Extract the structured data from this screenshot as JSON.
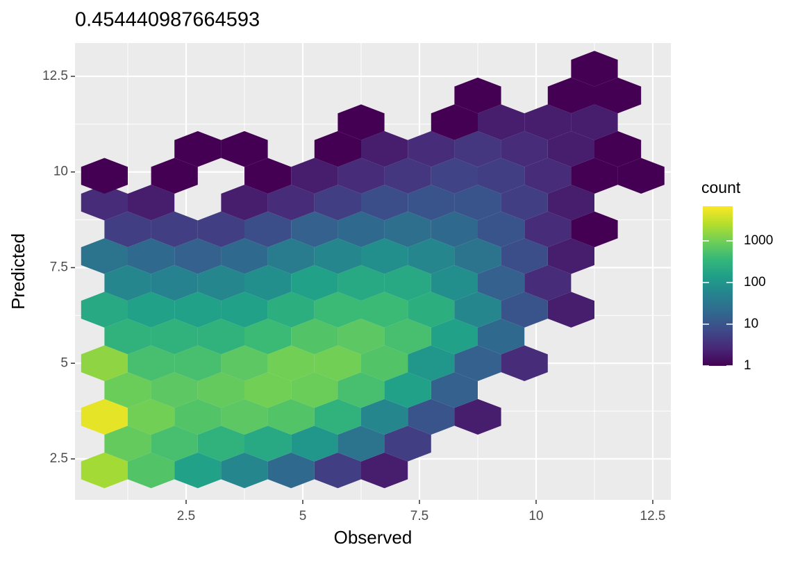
{
  "chart_data": {
    "type": "hexbin",
    "title": "0.454440987664593",
    "x_label": "Observed",
    "y_label": "Predicted",
    "x": [
      0.75,
      1.75,
      2.75,
      3.75,
      4.75,
      5.75,
      6.75,
      1.25,
      2.25,
      3.25,
      4.25,
      5.25,
      6.25,
      7.25,
      0.75,
      1.75,
      2.75,
      3.75,
      4.75,
      5.75,
      6.75,
      7.75,
      8.75,
      1.25,
      2.25,
      3.25,
      4.25,
      5.25,
      6.25,
      7.25,
      8.25,
      0.75,
      1.75,
      2.75,
      3.75,
      4.75,
      5.75,
      6.75,
      7.75,
      8.75,
      9.75,
      1.25,
      2.25,
      3.25,
      4.25,
      5.25,
      6.25,
      7.25,
      8.25,
      9.25,
      0.75,
      1.75,
      2.75,
      3.75,
      4.75,
      5.75,
      6.75,
      7.75,
      8.75,
      9.75,
      10.75,
      1.25,
      2.25,
      3.25,
      4.25,
      5.25,
      6.25,
      7.25,
      8.25,
      9.25,
      10.25,
      0.75,
      1.75,
      2.75,
      3.75,
      4.75,
      5.75,
      6.75,
      7.75,
      8.75,
      9.75,
      10.75,
      1.25,
      2.25,
      3.25,
      4.25,
      5.25,
      6.25,
      7.25,
      8.25,
      9.25,
      10.25,
      11.25,
      0.75,
      1.75,
      3.75,
      4.75,
      5.75,
      6.75,
      7.75,
      8.75,
      9.75,
      10.75,
      0.75,
      2.25,
      4.25,
      5.25,
      6.25,
      7.25,
      8.25,
      9.25,
      10.25,
      11.25,
      12.25,
      2.75,
      3.75,
      5.75,
      6.75,
      7.75,
      8.75,
      9.75,
      10.75,
      11.75,
      6.25,
      8.25,
      9.25,
      10.25,
      11.25,
      8.75,
      10.75,
      11.75,
      11.25
    ],
    "y": [
      2.2,
      2.2,
      2.2,
      2.2,
      2.2,
      2.2,
      2.2,
      2.9,
      2.9,
      2.9,
      2.9,
      2.9,
      2.9,
      2.9,
      3.6,
      3.6,
      3.6,
      3.6,
      3.6,
      3.6,
      3.6,
      3.6,
      3.6,
      4.3,
      4.3,
      4.3,
      4.3,
      4.3,
      4.3,
      4.3,
      4.3,
      5.0,
      5.0,
      5.0,
      5.0,
      5.0,
      5.0,
      5.0,
      5.0,
      5.0,
      5.0,
      5.7,
      5.7,
      5.7,
      5.7,
      5.7,
      5.7,
      5.7,
      5.7,
      5.7,
      6.4,
      6.4,
      6.4,
      6.4,
      6.4,
      6.4,
      6.4,
      6.4,
      6.4,
      6.4,
      6.4,
      7.1,
      7.1,
      7.1,
      7.1,
      7.1,
      7.1,
      7.1,
      7.1,
      7.1,
      7.1,
      7.8,
      7.8,
      7.8,
      7.8,
      7.8,
      7.8,
      7.8,
      7.8,
      7.8,
      7.8,
      7.8,
      8.5,
      8.5,
      8.5,
      8.5,
      8.5,
      8.5,
      8.5,
      8.5,
      8.5,
      8.5,
      8.5,
      9.2,
      9.2,
      9.2,
      9.2,
      9.2,
      9.2,
      9.2,
      9.2,
      9.2,
      9.2,
      9.9,
      9.9,
      9.9,
      9.9,
      9.9,
      9.9,
      9.9,
      9.9,
      9.9,
      9.9,
      9.9,
      10.6,
      10.6,
      10.6,
      10.6,
      10.6,
      10.6,
      10.6,
      10.6,
      10.6,
      11.3,
      11.3,
      11.3,
      11.3,
      11.3,
      12.0,
      12.0,
      12.0,
      12.7
    ],
    "values": [
      2000,
      600,
      150,
      60,
      20,
      5,
      2,
      800,
      500,
      300,
      200,
      100,
      30,
      5,
      5000,
      1000,
      600,
      700,
      600,
      300,
      60,
      10,
      2,
      900,
      700,
      800,
      1000,
      900,
      500,
      150,
      15,
      1500,
      500,
      500,
      700,
      1000,
      1000,
      600,
      100,
      15,
      3,
      300,
      300,
      300,
      400,
      600,
      700,
      500,
      150,
      20,
      200,
      150,
      150,
      150,
      250,
      400,
      400,
      250,
      60,
      10,
      2,
      60,
      50,
      60,
      80,
      150,
      200,
      200,
      80,
      15,
      3,
      30,
      20,
      15,
      20,
      40,
      60,
      80,
      60,
      30,
      8,
      2,
      5,
      5,
      5,
      8,
      15,
      20,
      25,
      20,
      10,
      3,
      1,
      3,
      2,
      2,
      3,
      5,
      8,
      10,
      10,
      5,
      2,
      1,
      1,
      1,
      2,
      3,
      4,
      6,
      5,
      3,
      1,
      1,
      1,
      1,
      1,
      2,
      3,
      4,
      3,
      2,
      1,
      1,
      1,
      2,
      2,
      2,
      1,
      1,
      1,
      1
    ],
    "xlim": [
      0.119,
      12.887
    ],
    "ylim": [
      1.43,
      13.37
    ],
    "xticks": [
      2.5,
      5.0,
      7.5,
      10.0,
      12.5
    ],
    "yticks": [
      2.5,
      5.0,
      7.5,
      10.0,
      12.5
    ],
    "legend_title": "count",
    "color_scale": "log",
    "colormap": "viridis",
    "clim": [
      1,
      6800
    ],
    "legend_ticks": [
      1,
      10,
      100,
      1000
    ]
  }
}
